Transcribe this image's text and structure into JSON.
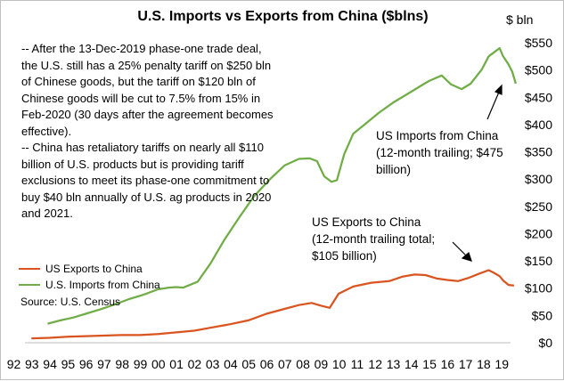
{
  "chart_data": {
    "type": "line",
    "title": "U.S. Imports vs Exports from China ($blns)",
    "ylabel": "$ bln",
    "ylim": [
      0,
      550
    ],
    "xlim": [
      1992,
      2020
    ],
    "yticks": [
      "$0",
      "$50",
      "$100",
      "$150",
      "$200",
      "$250",
      "$300",
      "$350",
      "$400",
      "$450",
      "$500",
      "$550"
    ],
    "xticks": [
      "92",
      "93",
      "94",
      "95",
      "96",
      "97",
      "98",
      "99",
      "00",
      "01",
      "02",
      "03",
      "04",
      "05",
      "06",
      "07",
      "08",
      "09",
      "10",
      "11",
      "12",
      "13",
      "14",
      "15",
      "16",
      "17",
      "18",
      "19"
    ],
    "grid": false,
    "legend_position": "bottom-left",
    "series": [
      {
        "name": "US Exports to China",
        "color": "#d9541e",
        "x": [
          1993,
          1994,
          1995,
          1996,
          1997,
          1998,
          1999,
          2000,
          2001,
          2002,
          2003,
          2004,
          2005,
          2006,
          2007,
          2007.8,
          2008.5,
          2009.0,
          2009.5,
          2010.0,
          2010.8,
          2011.8,
          2012.8,
          2013.5,
          2014.2,
          2014.8,
          2015.4,
          2016.0,
          2016.6,
          2017.2,
          2017.8,
          2018.3,
          2018.6,
          2018.9,
          2019.1,
          2019.4,
          2019.7
        ],
        "y": [
          8,
          9,
          11,
          12,
          13,
          14,
          14,
          16,
          19,
          22,
          28,
          34,
          41,
          53,
          62,
          69,
          73,
          68,
          64,
          90,
          103,
          110,
          113,
          121,
          125,
          124,
          118,
          115,
          113,
          119,
          127,
          133,
          128,
          122,
          114,
          106,
          105
        ]
      },
      {
        "name": "U.S. Imports from China",
        "color": "#70ad47",
        "x": [
          1993.9,
          1994.6,
          1995.3,
          1996.0,
          1996.8,
          1997.6,
          1998.4,
          1999.2,
          2000.0,
          2000.6,
          2001.0,
          2001.4,
          2002.2,
          2002.9,
          2003.7,
          2004.5,
          2005.3,
          2006.2,
          2007.0,
          2007.8,
          2008.4,
          2008.8,
          2009.2,
          2009.6,
          2009.9,
          2010.3,
          2010.8,
          2011.5,
          2012.2,
          2013.0,
          2013.8,
          2014.5,
          2015.0,
          2015.7,
          2016.2,
          2016.8,
          2017.3,
          2017.9,
          2018.3,
          2018.7,
          2018.9,
          2019.1,
          2019.4,
          2019.6,
          2019.8
        ],
        "y": [
          35,
          41,
          46,
          53,
          61,
          70,
          80,
          88,
          98,
          101,
          102,
          101,
          112,
          145,
          190,
          230,
          268,
          300,
          325,
          337,
          338,
          333,
          305,
          295,
          298,
          345,
          383,
          402,
          421,
          440,
          456,
          470,
          480,
          490,
          474,
          465,
          475,
          500,
          525,
          535,
          540,
          525,
          510,
          497,
          475
        ]
      }
    ],
    "annotations": [
      "-- After the 13-Dec-2019  phase-one trade deal, the U.S. still has a  25% penalty tariff on $250  bln of Chinese goods, but the tariff on $120  bln of Chinese goods will be cut to 7.5% from 15%  in Feb-2020  (30 days after the agreement becomes effective).\n-- China has retaliatory tariffs on nearly all $110  billion of U.S. products but is providing tariff exclusions to meet its phase-one commitment to buy $40  bln annually of U.S. ag products in 2020  and 2021.",
      "US Imports  from China\n(12-month  trailing; $475\nbillion)",
      "US Exports to China\n(12-month trailing total;\n$105 billion)"
    ],
    "source": "Source:  U.S. Census"
  }
}
